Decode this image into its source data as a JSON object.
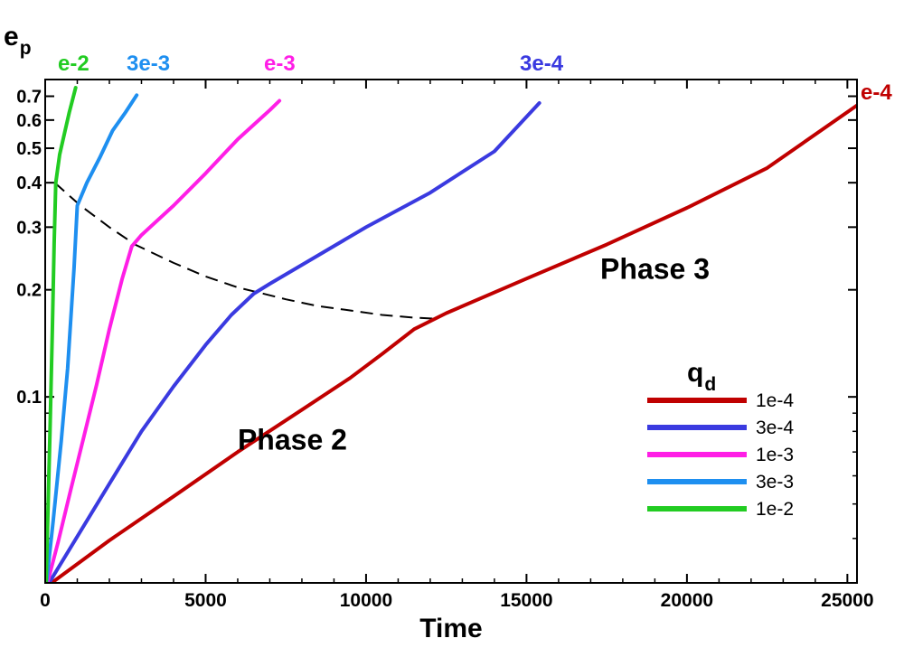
{
  "chart_data": {
    "type": "line",
    "xlabel": "Time",
    "ylabel_main": "e",
    "ylabel_sub": "p",
    "xlim": [
      0,
      25300
    ],
    "ylim": [
      0.03,
      0.78
    ],
    "y_scale": "log",
    "x_ticks": [
      0,
      5000,
      10000,
      15000,
      20000,
      25000
    ],
    "x_tick_labels": [
      "0",
      "5000",
      "10000",
      "15000",
      "20000",
      "25000"
    ],
    "y_ticks": [
      0.1,
      0.2,
      0.3,
      0.4,
      0.5,
      0.6,
      0.7
    ],
    "y_tick_labels": [
      "0.1",
      "0.2",
      "0.3",
      "0.4",
      "0.5",
      "0.6",
      "0.7"
    ],
    "y_minor_ticks": [
      0.04,
      0.05,
      0.06,
      0.07,
      0.08,
      0.09
    ],
    "legend": {
      "title_main": "q",
      "title_sub": "d",
      "placement": "lower-right"
    },
    "series": [
      {
        "name": "1e-4",
        "end_label": "e-4",
        "color": "#c00000",
        "x": [
          200,
          2000,
          4000,
          6000,
          8000,
          9500,
          10500,
          11500,
          12500,
          15000,
          17500,
          20000,
          22500,
          25300
        ],
        "y": [
          0.03,
          0.0395,
          0.0525,
          0.07,
          0.092,
          0.113,
          0.132,
          0.155,
          0.172,
          0.215,
          0.268,
          0.34,
          0.44,
          0.66
        ]
      },
      {
        "name": "3e-4",
        "end_label": "3e-4",
        "color": "#3a3ae0",
        "x": [
          120,
          1000,
          2000,
          3000,
          4000,
          5000,
          5800,
          6500,
          7000,
          8000,
          10000,
          12000,
          14000,
          15400
        ],
        "y": [
          0.03,
          0.0405,
          0.057,
          0.08,
          0.107,
          0.14,
          0.17,
          0.195,
          0.208,
          0.235,
          0.3,
          0.375,
          0.49,
          0.67
        ]
      },
      {
        "name": "1e-3",
        "end_label": "e-3",
        "color": "#ff1ee6",
        "x": [
          70,
          400,
          800,
          1200,
          1600,
          2000,
          2400,
          2700,
          3000,
          4000,
          5000,
          6000,
          7000,
          7300
        ],
        "y": [
          0.03,
          0.039,
          0.055,
          0.077,
          0.108,
          0.155,
          0.215,
          0.265,
          0.285,
          0.345,
          0.425,
          0.53,
          0.64,
          0.68
        ]
      },
      {
        "name": "3e-3",
        "end_label": "3e-3",
        "color": "#1e8ff0",
        "x": [
          40,
          250,
          500,
          700,
          900,
          1000,
          1300,
          1700,
          2100,
          2500,
          2850
        ],
        "y": [
          0.03,
          0.045,
          0.075,
          0.12,
          0.23,
          0.345,
          0.4,
          0.47,
          0.56,
          0.63,
          0.705
        ]
      },
      {
        "name": "1e-2",
        "end_label": "e-2",
        "color": "#22cc22",
        "x": [
          25,
          80,
          150,
          220,
          280,
          330,
          450,
          600,
          750,
          950
        ],
        "y": [
          0.03,
          0.045,
          0.08,
          0.15,
          0.27,
          0.4,
          0.48,
          0.55,
          0.63,
          0.74
        ]
      }
    ],
    "transition_curve": {
      "style": "dashed",
      "color": "#000000",
      "x": [
        300,
        1100,
        2000,
        2800,
        4000,
        5000,
        6000,
        6700,
        7500,
        8500,
        9500,
        10500,
        11500,
        12100
      ],
      "y": [
        0.4,
        0.345,
        0.3,
        0.268,
        0.238,
        0.218,
        0.203,
        0.196,
        0.188,
        0.18,
        0.175,
        0.17,
        0.167,
        0.166
      ]
    },
    "annotations": [
      {
        "text": "Phase 2",
        "x": 6000,
        "y": 0.071
      },
      {
        "text": "Phase 3",
        "x": 17300,
        "y": 0.215
      }
    ]
  }
}
